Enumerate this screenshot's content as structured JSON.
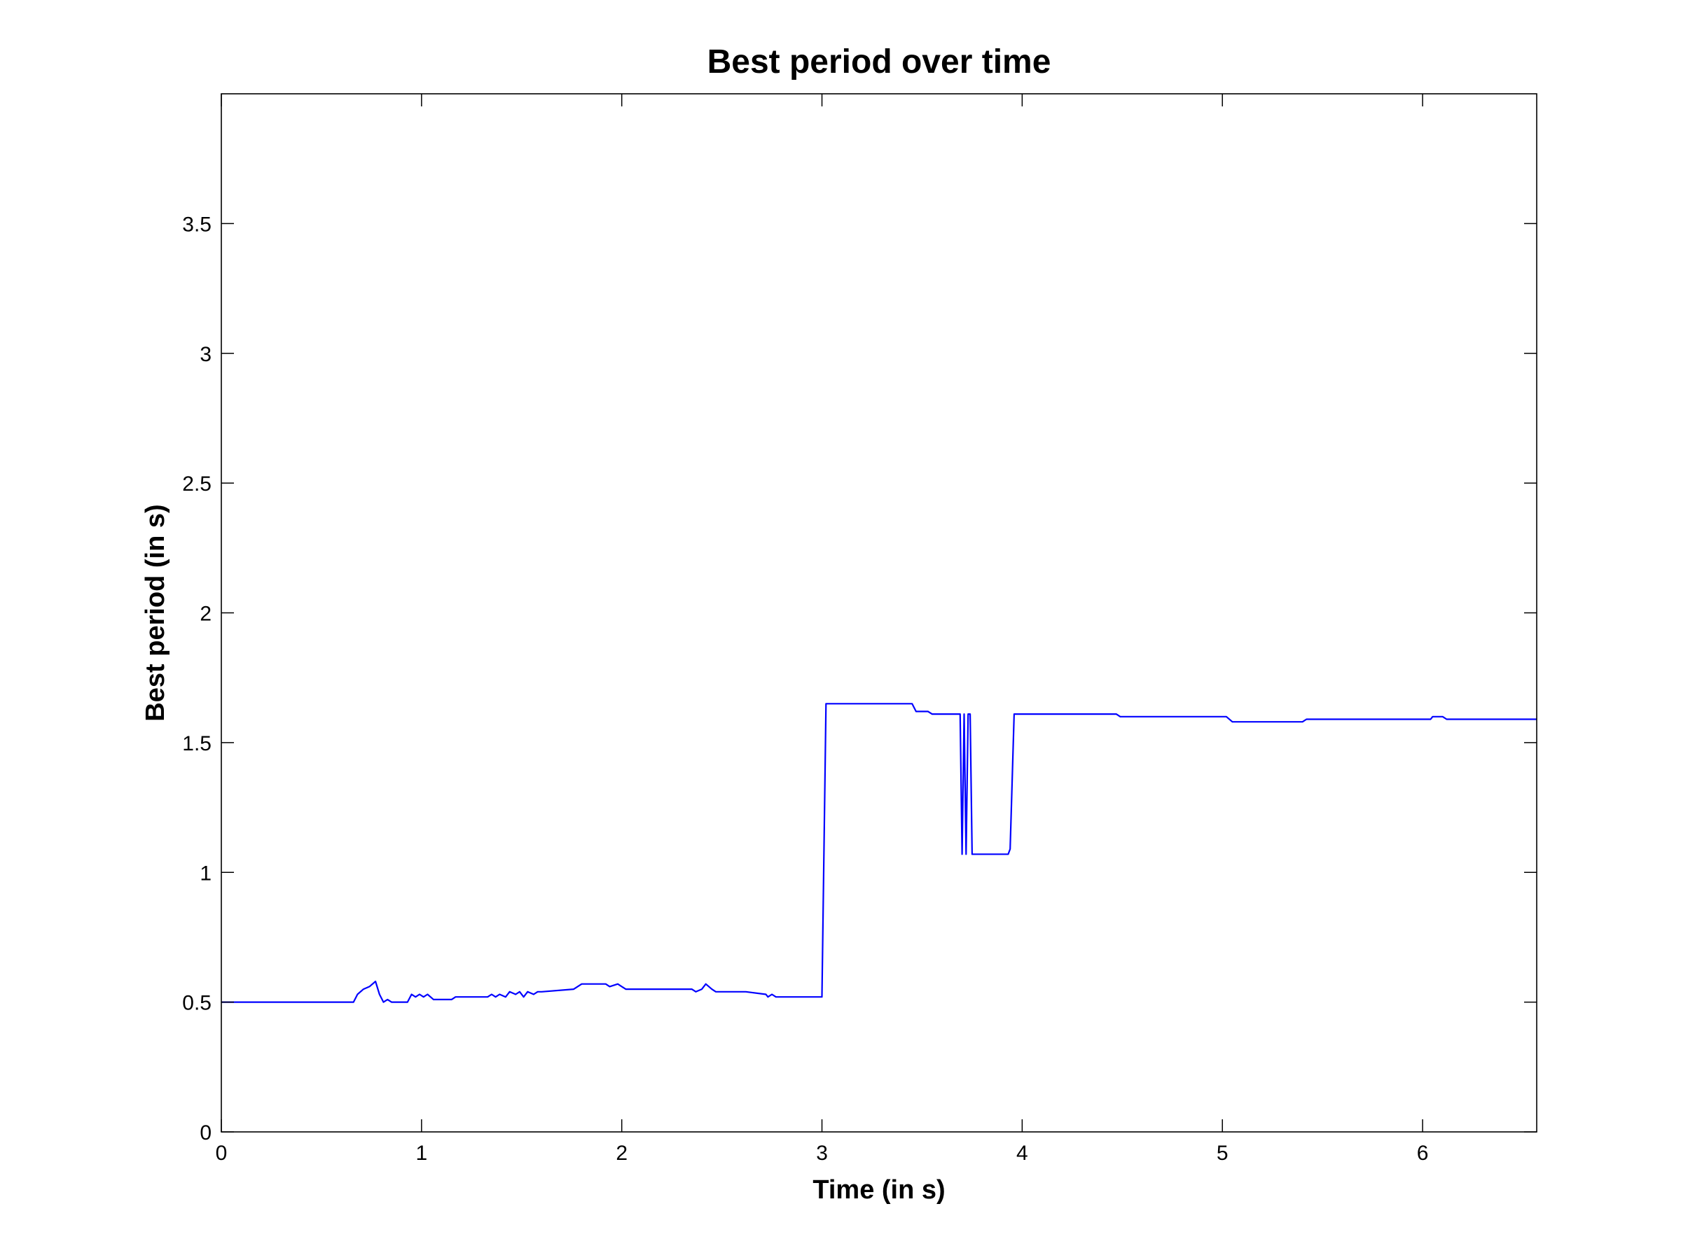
{
  "chart_data": {
    "type": "line",
    "title": "Best period over time",
    "xlabel": "Time (in s)",
    "ylabel": "Best period (in s)",
    "xlim": [
      0,
      6.57
    ],
    "ylim": [
      0,
      4
    ],
    "x_ticks": [
      0,
      1,
      2,
      3,
      4,
      5,
      6
    ],
    "x_tick_labels": [
      "0",
      "1",
      "2",
      "3",
      "4",
      "5",
      "6"
    ],
    "y_ticks": [
      0,
      0.5,
      1,
      1.5,
      2,
      2.5,
      3,
      3.5
    ],
    "y_tick_labels": [
      "0",
      "0.5",
      "1",
      "1.5",
      "2",
      "2.5",
      "3",
      "3.5"
    ],
    "grid": false,
    "line_color": "#0000ff",
    "series": [
      {
        "x": [
          0,
          0.66,
          0.68,
          0.71,
          0.74,
          0.77,
          0.79,
          0.81,
          0.83,
          0.85,
          0.93,
          0.95,
          0.97,
          0.99,
          1.01,
          1.03,
          1.06,
          1.08,
          1.1,
          1.15,
          1.17,
          1.33,
          1.35,
          1.37,
          1.39,
          1.42,
          1.44,
          1.47,
          1.49,
          1.51,
          1.53,
          1.56,
          1.58,
          1.6,
          1.76,
          1.8,
          1.92,
          1.94,
          1.98,
          2.02,
          2.35,
          2.37,
          2.4,
          2.42,
          2.45,
          2.47,
          2.62,
          2.72,
          2.73,
          2.75,
          2.77,
          3.0,
          3.02,
          3.45,
          3.47,
          3.53,
          3.55,
          3.69,
          3.7,
          3.71,
          3.72,
          3.73,
          3.74,
          3.75,
          3.93,
          3.94,
          3.96,
          4.47,
          4.49,
          5.02,
          5.05,
          5.4,
          5.42,
          6.04,
          6.05,
          6.1,
          6.12,
          6.57
        ],
        "y": [
          0.5,
          0.5,
          0.53,
          0.55,
          0.56,
          0.58,
          0.53,
          0.5,
          0.51,
          0.5,
          0.5,
          0.53,
          0.52,
          0.53,
          0.52,
          0.53,
          0.51,
          0.51,
          0.51,
          0.51,
          0.52,
          0.52,
          0.53,
          0.52,
          0.53,
          0.52,
          0.54,
          0.53,
          0.54,
          0.52,
          0.54,
          0.53,
          0.54,
          0.54,
          0.55,
          0.57,
          0.57,
          0.56,
          0.57,
          0.55,
          0.55,
          0.54,
          0.55,
          0.57,
          0.55,
          0.54,
          0.54,
          0.53,
          0.52,
          0.53,
          0.52,
          0.52,
          1.65,
          1.65,
          1.62,
          1.62,
          1.61,
          1.61,
          1.07,
          1.61,
          1.07,
          1.61,
          1.61,
          1.07,
          1.07,
          1.09,
          1.61,
          1.61,
          1.6,
          1.6,
          1.58,
          1.58,
          1.59,
          1.59,
          1.6,
          1.6,
          1.59,
          1.59
        ]
      }
    ]
  }
}
